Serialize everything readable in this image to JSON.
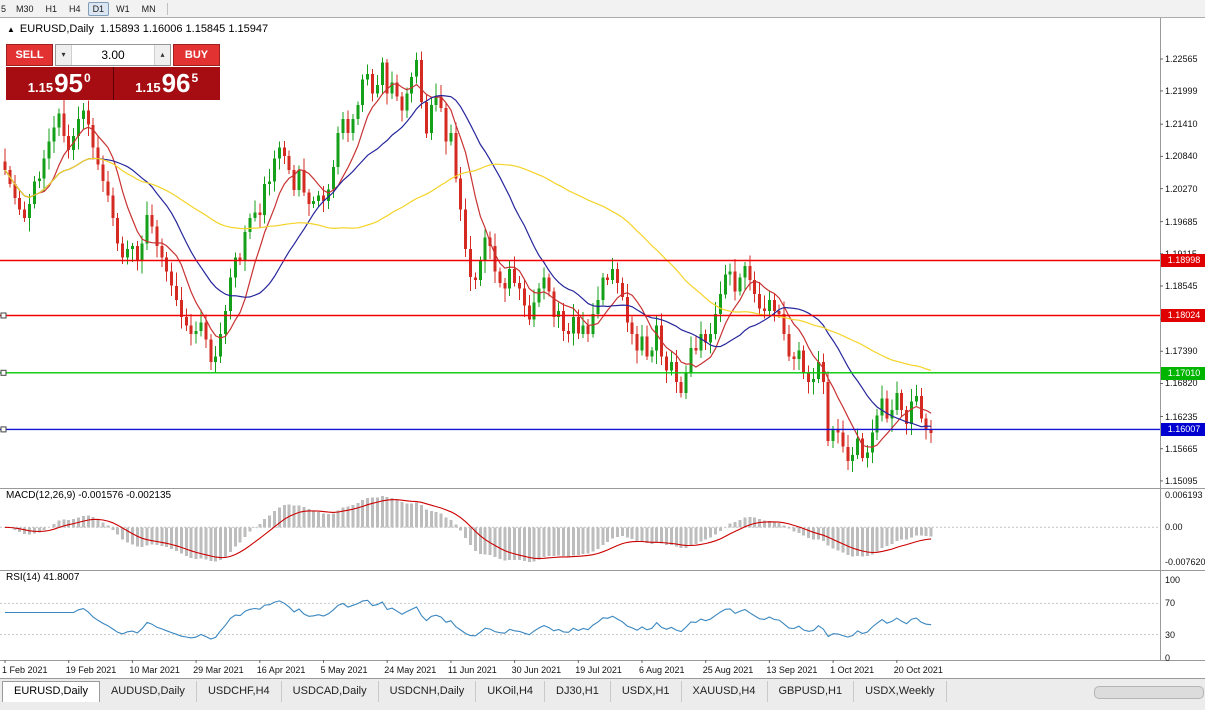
{
  "toolbar": {
    "timeframes": [
      {
        "label": "5",
        "partial": true
      },
      {
        "label": "M30"
      },
      {
        "label": "H1"
      },
      {
        "label": "H4"
      },
      {
        "label": "D1",
        "active": true
      },
      {
        "label": "W1"
      },
      {
        "label": "MN"
      }
    ]
  },
  "chart_header": {
    "collapse_icon": "▲",
    "title": "EURUSD,Daily",
    "ohlc": "1.15893 1.16006 1.15845 1.15947"
  },
  "trade_panel": {
    "sell_label": "SELL",
    "buy_label": "BUY",
    "lot_value": "3.00",
    "lot_down_icon": "▾",
    "lot_up_icon": "▴",
    "bid": {
      "prefix": "1.15",
      "big": "95",
      "sup": "0"
    },
    "ask": {
      "prefix": "1.15",
      "big": "96",
      "sup": "5"
    }
  },
  "price_axis": {
    "labels": [
      "1.22565",
      "1.21999",
      "1.21410",
      "1.20840",
      "1.20270",
      "1.19685",
      "1.19115",
      "1.18545",
      "1.17960",
      "1.17390",
      "1.16820",
      "1.16235",
      "1.15665",
      "1.15095"
    ],
    "badges": [
      {
        "text": "1.18998",
        "value": 1.18998,
        "color": "#e00000"
      },
      {
        "text": "1.18024",
        "value": 1.18024,
        "color": "#e00000"
      },
      {
        "text": "1.17010",
        "value": 1.1701,
        "color": "#00b400"
      },
      {
        "text": "1.16007",
        "value": 1.16007,
        "color": "#0000d0"
      }
    ]
  },
  "macd_panel": {
    "label": "MACD(12,26,9)",
    "values": "-0.001576 -0.002135",
    "axis_top": "0.006193",
    "axis_zero": "0.00",
    "axis_bottom": "-0.007620"
  },
  "rsi_panel": {
    "label": "RSI(14)",
    "value": "41.8007",
    "axis": [
      "100",
      "70",
      "30",
      "0"
    ]
  },
  "time_axis": {
    "labels": [
      "1 Feb 2021",
      "19 Feb 2021",
      "10 Mar 2021",
      "29 Mar 2021",
      "16 Apr 2021",
      "5 May 2021",
      "24 May 2021",
      "11 Jun 2021",
      "30 Jun 2021",
      "19 Jul 2021",
      "6 Aug 2021",
      "25 Aug 2021",
      "13 Sep 2021",
      "1 Oct 2021",
      "20 Oct 2021"
    ]
  },
  "tabs": {
    "items": [
      "EURUSD,Daily",
      "AUDUSD,Daily",
      "USDCHF,H4",
      "USDCAD,Daily",
      "USDCNH,Daily",
      "UKOil,H4",
      "DJ30,H1",
      "USDX,H1",
      "XAUUSD,H4",
      "GBPUSD,H1",
      "USDX,Weekly"
    ],
    "active_index": 0
  },
  "chart_data": {
    "type": "candlestick",
    "title": "EURUSD,Daily",
    "price_range": [
      1.1497,
      1.2329
    ],
    "up_color": "#14a018",
    "down_color": "#d42a22",
    "closes": [
      1.206,
      1.2035,
      1.201,
      1.199,
      1.1975,
      1.2,
      1.204,
      1.2045,
      1.208,
      1.211,
      1.2135,
      1.216,
      1.212,
      1.2095,
      1.212,
      1.215,
      1.2165,
      1.214,
      1.21,
      1.207,
      1.204,
      1.2015,
      1.1975,
      1.193,
      1.1905,
      1.192,
      1.1925,
      1.19,
      1.193,
      1.198,
      1.196,
      1.1925,
      1.1905,
      1.188,
      1.1855,
      1.183,
      1.18,
      1.1785,
      1.177,
      1.1775,
      1.179,
      1.176,
      1.172,
      1.173,
      1.177,
      1.181,
      1.187,
      1.1905,
      1.19,
      1.195,
      1.1975,
      1.1985,
      1.198,
      1.2035,
      1.204,
      1.208,
      1.21,
      1.2085,
      1.206,
      1.2025,
      1.206,
      1.202,
      1.2,
      1.2005,
      1.2015,
      1.2005,
      1.2025,
      1.2065,
      1.2125,
      1.215,
      1.2125,
      1.215,
      1.2175,
      1.222,
      1.223,
      1.2195,
      1.221,
      1.225,
      1.2195,
      1.2215,
      1.219,
      1.2165,
      1.2195,
      1.2225,
      1.2255,
      1.218,
      1.2125,
      1.2175,
      1.219,
      1.217,
      1.211,
      1.2125,
      1.2045,
      1.199,
      1.192,
      1.187,
      1.1865,
      1.19,
      1.194,
      1.1925,
      1.188,
      1.186,
      1.185,
      1.1885,
      1.186,
      1.185,
      1.182,
      1.1795,
      1.1825,
      1.185,
      1.187,
      1.1845,
      1.18,
      1.181,
      1.1775,
      1.177,
      1.18,
      1.177,
      1.1785,
      1.177,
      1.1805,
      1.183,
      1.187,
      1.1865,
      1.1885,
      1.186,
      1.1835,
      1.179,
      1.177,
      1.174,
      1.1765,
      1.173,
      1.174,
      1.1785,
      1.173,
      1.1705,
      1.172,
      1.1685,
      1.1665,
      1.17,
      1.1745,
      1.174,
      1.177,
      1.1755,
      1.177,
      1.1805,
      1.184,
      1.1875,
      1.188,
      1.1845,
      1.187,
      1.189,
      1.1865,
      1.184,
      1.1815,
      1.181,
      1.183,
      1.181,
      1.1805,
      1.177,
      1.173,
      1.1725,
      1.174,
      1.17,
      1.1685,
      1.169,
      1.172,
      1.1685,
      1.158,
      1.16,
      1.1595,
      1.157,
      1.1545,
      1.1555,
      1.1585,
      1.155,
      1.156,
      1.1595,
      1.1625,
      1.1655,
      1.162,
      1.1635,
      1.1665,
      1.1635,
      1.161,
      1.165,
      1.166,
      1.162,
      1.16,
      1.15947
    ],
    "hlines": [
      {
        "value": 1.18998,
        "color": "#f00000"
      },
      {
        "value": 1.18024,
        "color": "#f00000"
      },
      {
        "value": 1.1701,
        "color": "#00c800"
      },
      {
        "value": 1.16007,
        "color": "#1414d2"
      }
    ],
    "moving_averages": [
      {
        "period": 8,
        "color": "#c83232"
      },
      {
        "period": 20,
        "color": "#26269c"
      },
      {
        "period": 55,
        "color": "#f5d327"
      }
    ],
    "macd": {
      "fast": 12,
      "slow": 26,
      "signal": 9,
      "histogram_color": "#bdbdbd",
      "signal_color": "#cc0000"
    },
    "rsi": {
      "period": 14,
      "color": "#3a87c0",
      "levels": [
        70,
        30
      ]
    }
  }
}
